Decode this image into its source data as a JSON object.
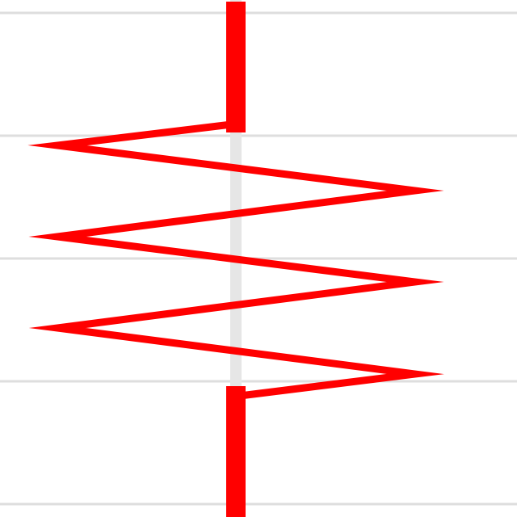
{
  "diagram": {
    "symbol": "resistor-zigzag",
    "zigzag_peaks": 6
  },
  "colors": {
    "background": "#ffffff",
    "grid_line": "#dedede",
    "axis_line": "#e6e6e6",
    "resistor": "#ff0000"
  }
}
